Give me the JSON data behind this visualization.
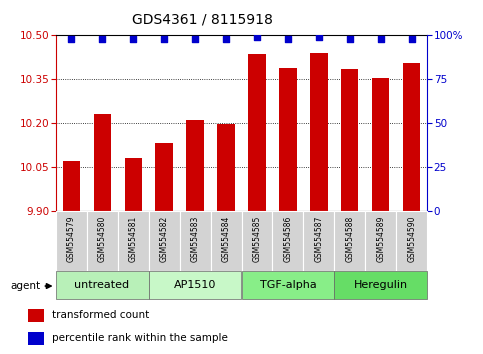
{
  "title": "GDS4361 / 8115918",
  "samples": [
    "GSM554579",
    "GSM554580",
    "GSM554581",
    "GSM554582",
    "GSM554583",
    "GSM554584",
    "GSM554585",
    "GSM554586",
    "GSM554587",
    "GSM554588",
    "GSM554589",
    "GSM554590"
  ],
  "bar_values": [
    10.07,
    10.23,
    10.08,
    10.13,
    10.21,
    10.195,
    10.435,
    10.39,
    10.44,
    10.385,
    10.355,
    10.405
  ],
  "percentile_values": [
    98,
    98,
    98,
    98,
    98,
    98,
    99,
    98,
    99,
    98,
    98,
    98
  ],
  "bar_color": "#cc0000",
  "percentile_color": "#0000cc",
  "ylim_left": [
    9.9,
    10.5
  ],
  "ylim_right": [
    0,
    100
  ],
  "yticks_left": [
    9.9,
    10.05,
    10.2,
    10.35,
    10.5
  ],
  "yticks_right": [
    0,
    25,
    50,
    75,
    100
  ],
  "ytick_labels_right": [
    "0",
    "25",
    "50",
    "75",
    "100%"
  ],
  "groups": [
    {
      "label": "untreated",
      "start": 0,
      "end": 3,
      "color": "#b8f0b8"
    },
    {
      "label": "AP1510",
      "start": 3,
      "end": 6,
      "color": "#c8f8c8"
    },
    {
      "label": "TGF-alpha",
      "start": 6,
      "end": 9,
      "color": "#88ee88"
    },
    {
      "label": "Heregulin",
      "start": 9,
      "end": 12,
      "color": "#66dd66"
    }
  ],
  "agent_label": "agent",
  "legend_items": [
    {
      "label": "transformed count",
      "color": "#cc0000"
    },
    {
      "label": "percentile rank within the sample",
      "color": "#0000cc"
    }
  ],
  "background_color": "#ffffff",
  "plot_bg_color": "#ffffff",
  "grid_color": "#000000",
  "title_fontsize": 10,
  "tick_fontsize": 7.5,
  "bar_width": 0.55,
  "label_gray": "#d3d3d3",
  "sample_fontsize": 5.5,
  "group_fontsize": 8,
  "legend_fontsize": 7.5
}
